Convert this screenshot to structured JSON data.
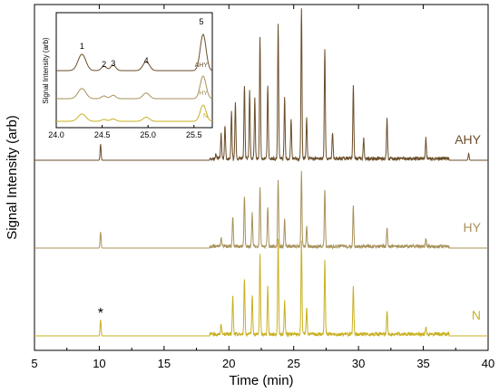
{
  "chart_data": {
    "type": "line",
    "xlabel": "Time (min)",
    "ylabel": "Signal Intensity (arb)",
    "xlim": [
      5,
      40
    ],
    "x_ticks": [
      5,
      10,
      15,
      20,
      25,
      30,
      35,
      40
    ],
    "grid": false,
    "annotation": "*",
    "annotation_x": 10.1,
    "series": [
      {
        "name": "AHY",
        "color": "#6b4e2a",
        "baseline": 0.0,
        "peaks": [
          {
            "x": 10.1,
            "h": 0.12
          },
          {
            "x": 19.0,
            "h": 0.04
          },
          {
            "x": 19.4,
            "h": 0.18
          },
          {
            "x": 19.7,
            "h": 0.25
          },
          {
            "x": 20.2,
            "h": 0.35
          },
          {
            "x": 20.5,
            "h": 0.42
          },
          {
            "x": 21.2,
            "h": 0.55
          },
          {
            "x": 21.6,
            "h": 0.5
          },
          {
            "x": 22.0,
            "h": 0.45
          },
          {
            "x": 22.4,
            "h": 0.9
          },
          {
            "x": 23.0,
            "h": 0.55
          },
          {
            "x": 23.8,
            "h": 1.0
          },
          {
            "x": 24.3,
            "h": 0.45
          },
          {
            "x": 24.8,
            "h": 0.3
          },
          {
            "x": 25.6,
            "h": 1.12
          },
          {
            "x": 26.0,
            "h": 0.3
          },
          {
            "x": 27.4,
            "h": 0.82
          },
          {
            "x": 28.0,
            "h": 0.2
          },
          {
            "x": 29.6,
            "h": 0.55
          },
          {
            "x": 30.4,
            "h": 0.15
          },
          {
            "x": 32.2,
            "h": 0.3
          },
          {
            "x": 35.2,
            "h": 0.15
          },
          {
            "x": 38.5,
            "h": 0.05
          }
        ]
      },
      {
        "name": "HY",
        "color": "#a8925a",
        "baseline": 0.0,
        "peaks": [
          {
            "x": 10.1,
            "h": 0.12
          },
          {
            "x": 19.4,
            "h": 0.07
          },
          {
            "x": 20.3,
            "h": 0.22
          },
          {
            "x": 21.2,
            "h": 0.38
          },
          {
            "x": 21.8,
            "h": 0.25
          },
          {
            "x": 22.4,
            "h": 0.45
          },
          {
            "x": 23.0,
            "h": 0.3
          },
          {
            "x": 23.8,
            "h": 0.5
          },
          {
            "x": 24.3,
            "h": 0.2
          },
          {
            "x": 25.6,
            "h": 0.55
          },
          {
            "x": 26.0,
            "h": 0.15
          },
          {
            "x": 27.4,
            "h": 0.42
          },
          {
            "x": 29.6,
            "h": 0.3
          },
          {
            "x": 32.2,
            "h": 0.14
          },
          {
            "x": 35.2,
            "h": 0.06
          }
        ]
      },
      {
        "name": "N",
        "color": "#c9b020",
        "baseline": 0.0,
        "peaks": [
          {
            "x": 10.1,
            "h": 0.12
          },
          {
            "x": 19.4,
            "h": 0.08
          },
          {
            "x": 20.3,
            "h": 0.28
          },
          {
            "x": 21.2,
            "h": 0.42
          },
          {
            "x": 21.8,
            "h": 0.3
          },
          {
            "x": 22.4,
            "h": 0.6
          },
          {
            "x": 23.0,
            "h": 0.35
          },
          {
            "x": 23.8,
            "h": 0.7
          },
          {
            "x": 24.3,
            "h": 0.25
          },
          {
            "x": 25.6,
            "h": 0.7
          },
          {
            "x": 26.0,
            "h": 0.2
          },
          {
            "x": 27.4,
            "h": 0.55
          },
          {
            "x": 29.6,
            "h": 0.35
          },
          {
            "x": 32.2,
            "h": 0.18
          },
          {
            "x": 35.2,
            "h": 0.06
          }
        ]
      }
    ],
    "inset": {
      "ylabel": "Signal Intensity (arb)",
      "xlim": [
        24.0,
        25.7
      ],
      "x_ticks": [
        "24.0",
        "24.5",
        "25.0",
        "25.5"
      ],
      "peak_labels": [
        {
          "label": "1",
          "x": 24.28
        },
        {
          "label": "2",
          "x": 24.52
        },
        {
          "label": "3",
          "x": 24.62
        },
        {
          "label": "4",
          "x": 24.98
        },
        {
          "label": "5",
          "x": 25.58
        }
      ],
      "series_labels": [
        "AHY",
        "HY",
        "N"
      ]
    }
  }
}
